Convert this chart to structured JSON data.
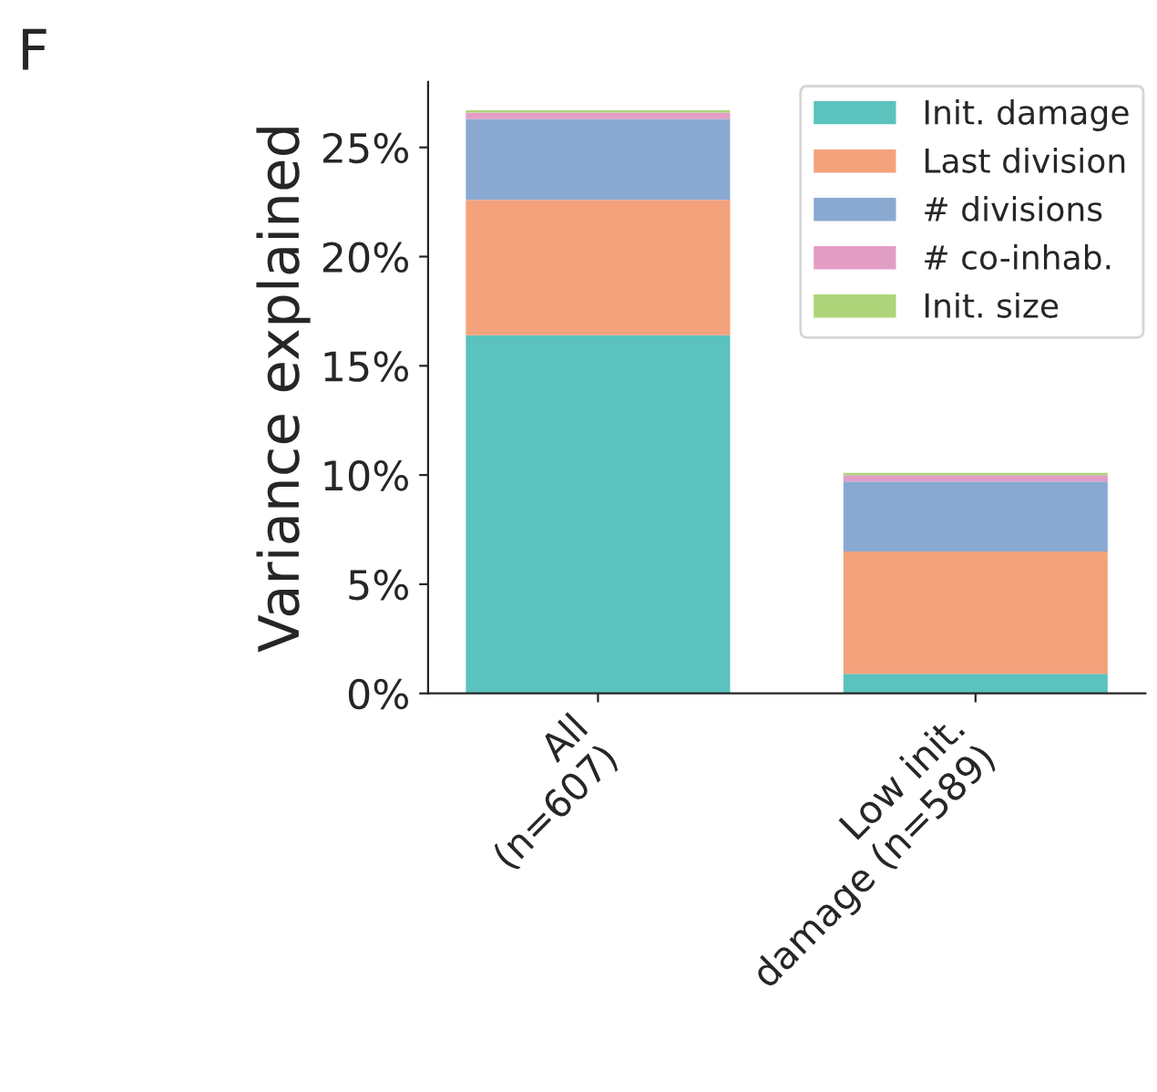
{
  "chart_data": {
    "type": "bar",
    "title": "F",
    "ylabel": "Variance explained",
    "stacked": true,
    "categories": [
      "All\n(n=607)",
      "Low init.\ndamage (n=589)"
    ],
    "series": [
      {
        "name": "Init. damage",
        "color": "#5bc2bd",
        "values": [
          16.4,
          0.9
        ]
      },
      {
        "name": "Last division",
        "color": "#f4a27c",
        "values": [
          6.2,
          5.6
        ]
      },
      {
        "name": "# divisions",
        "color": "#8aa9d1",
        "values": [
          3.7,
          3.2
        ]
      },
      {
        "name": "# co-inhab.",
        "color": "#e39ec5",
        "values": [
          0.3,
          0.3
        ]
      },
      {
        "name": "Init. size",
        "color": "#aed47a",
        "values": [
          0.1,
          0.1
        ]
      }
    ],
    "ylim": [
      0,
      28
    ],
    "yticks": [
      {
        "value": 0,
        "label": "0%"
      },
      {
        "value": 5,
        "label": "5%"
      },
      {
        "value": 10,
        "label": "10%"
      },
      {
        "value": 15,
        "label": "15%"
      },
      {
        "value": 20,
        "label": "20%"
      },
      {
        "value": 25,
        "label": "25%"
      }
    ],
    "grid": false,
    "legend": "top right"
  }
}
